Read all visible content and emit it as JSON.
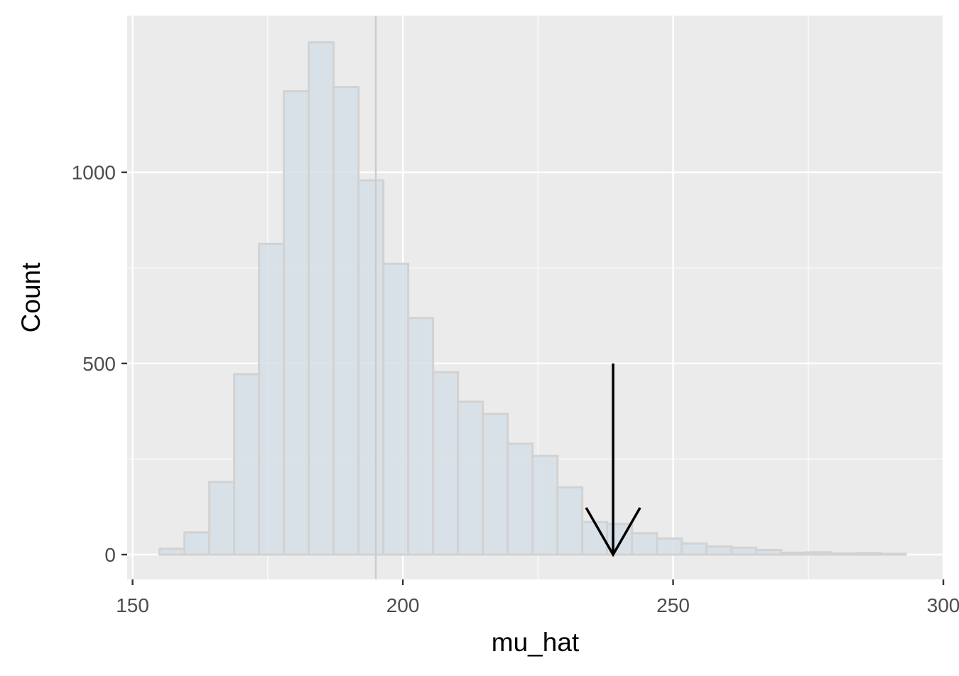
{
  "chart_data": {
    "type": "bar",
    "subtype": "histogram",
    "title": "",
    "xlabel": "mu_hat",
    "ylabel": "Count",
    "xlim": [
      149,
      300
    ],
    "ylim": [
      -65,
      1410
    ],
    "x_ticks": [
      150,
      200,
      250,
      300
    ],
    "y_ticks": [
      0,
      500,
      1000
    ],
    "grid": true,
    "bin_width": 4.6,
    "bins": [
      {
        "x0": 155.0,
        "x1": 159.6,
        "count": 15
      },
      {
        "x0": 159.6,
        "x1": 164.2,
        "count": 58
      },
      {
        "x0": 164.2,
        "x1": 168.8,
        "count": 190
      },
      {
        "x0": 168.8,
        "x1": 173.4,
        "count": 472
      },
      {
        "x0": 173.4,
        "x1": 178.0,
        "count": 813
      },
      {
        "x0": 178.0,
        "x1": 182.6,
        "count": 1212
      },
      {
        "x0": 182.6,
        "x1": 187.2,
        "count": 1340
      },
      {
        "x0": 187.2,
        "x1": 191.8,
        "count": 1223
      },
      {
        "x0": 191.8,
        "x1": 196.4,
        "count": 979
      },
      {
        "x0": 196.4,
        "x1": 201.0,
        "count": 761
      },
      {
        "x0": 201.0,
        "x1": 205.6,
        "count": 619
      },
      {
        "x0": 205.6,
        "x1": 210.2,
        "count": 477
      },
      {
        "x0": 210.2,
        "x1": 214.8,
        "count": 400
      },
      {
        "x0": 214.8,
        "x1": 219.4,
        "count": 368
      },
      {
        "x0": 219.4,
        "x1": 224.0,
        "count": 290
      },
      {
        "x0": 224.0,
        "x1": 228.6,
        "count": 258
      },
      {
        "x0": 228.6,
        "x1": 233.2,
        "count": 176
      },
      {
        "x0": 233.2,
        "x1": 237.8,
        "count": 85
      },
      {
        "x0": 237.8,
        "x1": 242.4,
        "count": 80
      },
      {
        "x0": 242.4,
        "x1": 247.0,
        "count": 56
      },
      {
        "x0": 247.0,
        "x1": 251.6,
        "count": 42
      },
      {
        "x0": 251.6,
        "x1": 256.2,
        "count": 29
      },
      {
        "x0": 256.2,
        "x1": 260.8,
        "count": 21
      },
      {
        "x0": 260.8,
        "x1": 265.4,
        "count": 18
      },
      {
        "x0": 265.4,
        "x1": 270.0,
        "count": 12
      },
      {
        "x0": 270.0,
        "x1": 274.6,
        "count": 5
      },
      {
        "x0": 274.6,
        "x1": 279.2,
        "count": 6
      },
      {
        "x0": 279.2,
        "x1": 283.8,
        "count": 3
      },
      {
        "x0": 283.8,
        "x1": 288.4,
        "count": 4
      },
      {
        "x0": 288.4,
        "x1": 293.0,
        "count": 2
      }
    ],
    "reference_line": {
      "x": 195.0
    },
    "arrow": {
      "x": 238.9,
      "y_start": 500,
      "y_end": 0
    },
    "colors": {
      "panel_background": "#ebebeb",
      "grid": "#ffffff",
      "bar_fill": "#d6dfe8",
      "bar_stroke": "#d2d2d2",
      "reference_line": "#cccccc",
      "arrow": "#000000"
    }
  }
}
